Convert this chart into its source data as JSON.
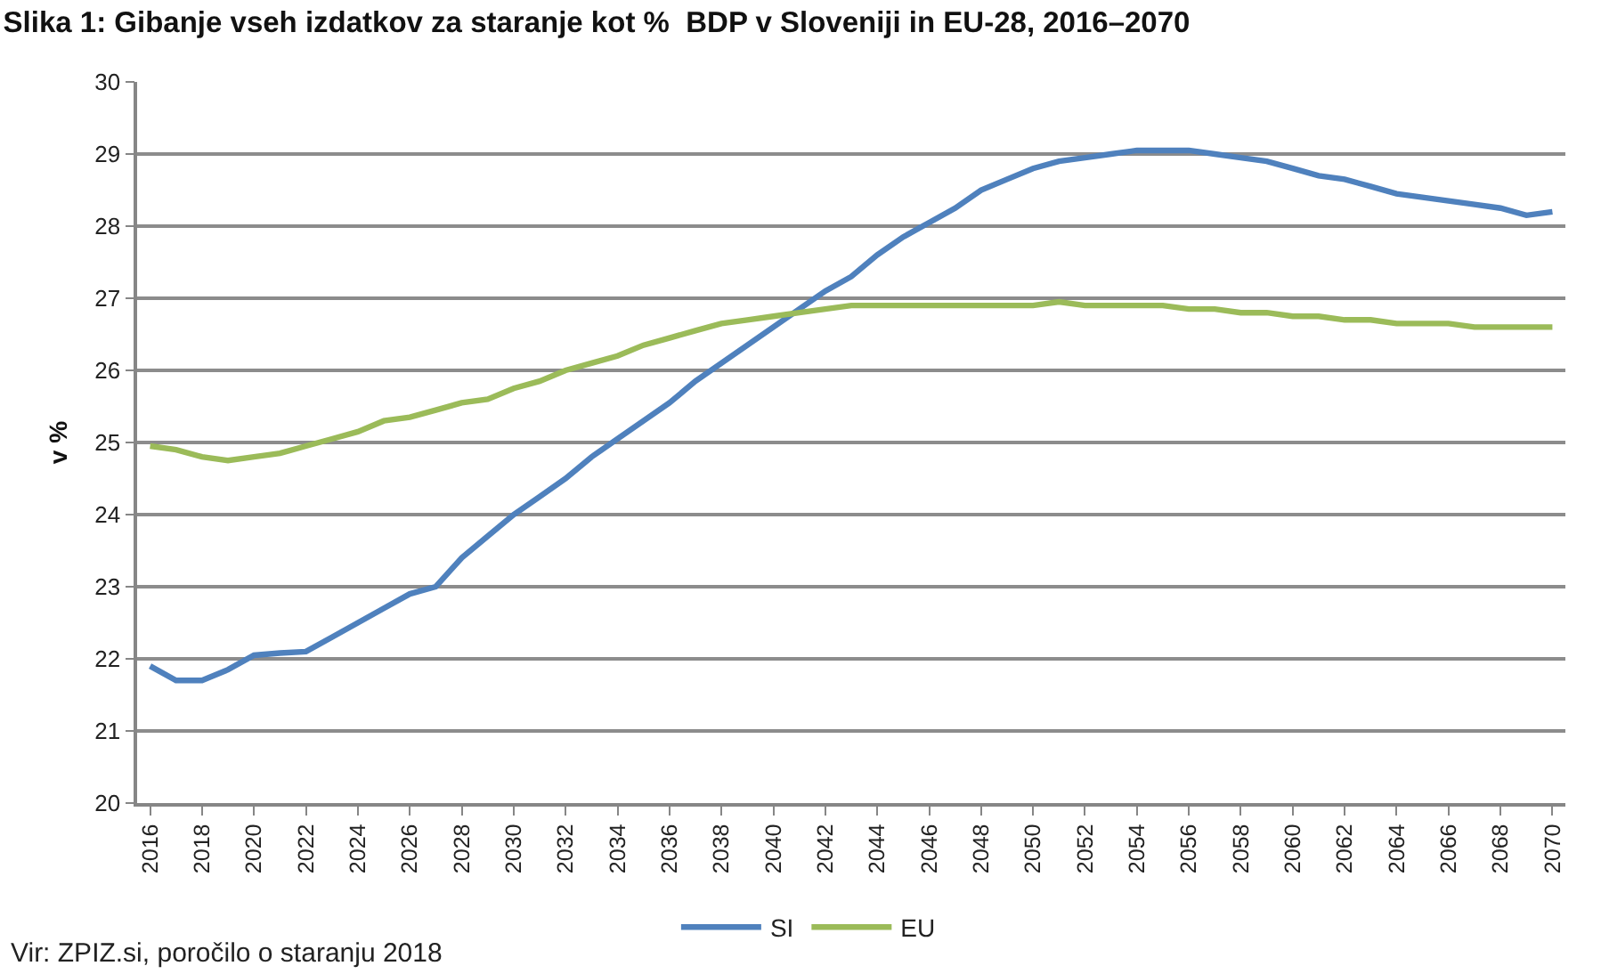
{
  "chart_data": {
    "type": "line",
    "title": "Slika 1: Gibanje vseh izdatkov za staranje kot %  BDP v Sloveniji in EU-28, 2016–2070",
    "ylabel": "v %",
    "annotations": [
      "Vir: ZPIZ.si, poročilo o staranju 2018"
    ],
    "x": [
      2016,
      2017,
      2018,
      2019,
      2020,
      2021,
      2022,
      2023,
      2024,
      2025,
      2026,
      2027,
      2028,
      2029,
      2030,
      2031,
      2032,
      2033,
      2034,
      2035,
      2036,
      2037,
      2038,
      2039,
      2040,
      2041,
      2042,
      2043,
      2044,
      2045,
      2046,
      2047,
      2048,
      2049,
      2050,
      2051,
      2052,
      2053,
      2054,
      2055,
      2056,
      2057,
      2058,
      2059,
      2060,
      2061,
      2062,
      2063,
      2064,
      2065,
      2066,
      2067,
      2068,
      2069,
      2070
    ],
    "series": [
      {
        "name": "SI",
        "color": "#4f81bd",
        "values": [
          21.9,
          21.7,
          21.7,
          21.85,
          22.05,
          22.08,
          22.1,
          22.3,
          22.5,
          22.7,
          22.9,
          23.0,
          23.4,
          23.7,
          24.0,
          24.25,
          24.5,
          24.8,
          25.05,
          25.3,
          25.55,
          25.85,
          26.1,
          26.35,
          26.6,
          26.85,
          27.1,
          27.3,
          27.6,
          27.85,
          28.05,
          28.25,
          28.5,
          28.65,
          28.8,
          28.9,
          28.95,
          29.0,
          29.05,
          29.05,
          29.05,
          29.0,
          28.95,
          28.9,
          28.8,
          28.7,
          28.65,
          28.55,
          28.45,
          28.4,
          28.35,
          28.3,
          28.25,
          28.15,
          28.2
        ]
      },
      {
        "name": "EU",
        "color": "#9bbb59",
        "values": [
          24.95,
          24.9,
          24.8,
          24.75,
          24.8,
          24.85,
          24.95,
          25.05,
          25.15,
          25.3,
          25.35,
          25.45,
          25.55,
          25.6,
          25.75,
          25.85,
          26.0,
          26.1,
          26.2,
          26.35,
          26.45,
          26.55,
          26.65,
          26.7,
          26.75,
          26.8,
          26.85,
          26.9,
          26.9,
          26.9,
          26.9,
          26.9,
          26.9,
          26.9,
          26.9,
          26.95,
          26.9,
          26.9,
          26.9,
          26.9,
          26.85,
          26.85,
          26.8,
          26.8,
          26.75,
          26.75,
          26.7,
          26.7,
          26.65,
          26.65,
          26.65,
          26.6,
          26.6,
          26.6,
          26.6
        ]
      }
    ],
    "xlim": [
      2015.5,
      2070.5
    ],
    "xticks": [
      2016,
      2018,
      2020,
      2022,
      2024,
      2026,
      2028,
      2030,
      2032,
      2034,
      2036,
      2038,
      2040,
      2042,
      2044,
      2046,
      2048,
      2050,
      2052,
      2054,
      2056,
      2058,
      2060,
      2062,
      2064,
      2066,
      2068,
      2070
    ],
    "ylim": [
      20,
      30
    ],
    "yticks": [
      20,
      21,
      22,
      23,
      24,
      25,
      26,
      27,
      28,
      29,
      30
    ],
    "grid": "y",
    "legend": "bottom"
  }
}
